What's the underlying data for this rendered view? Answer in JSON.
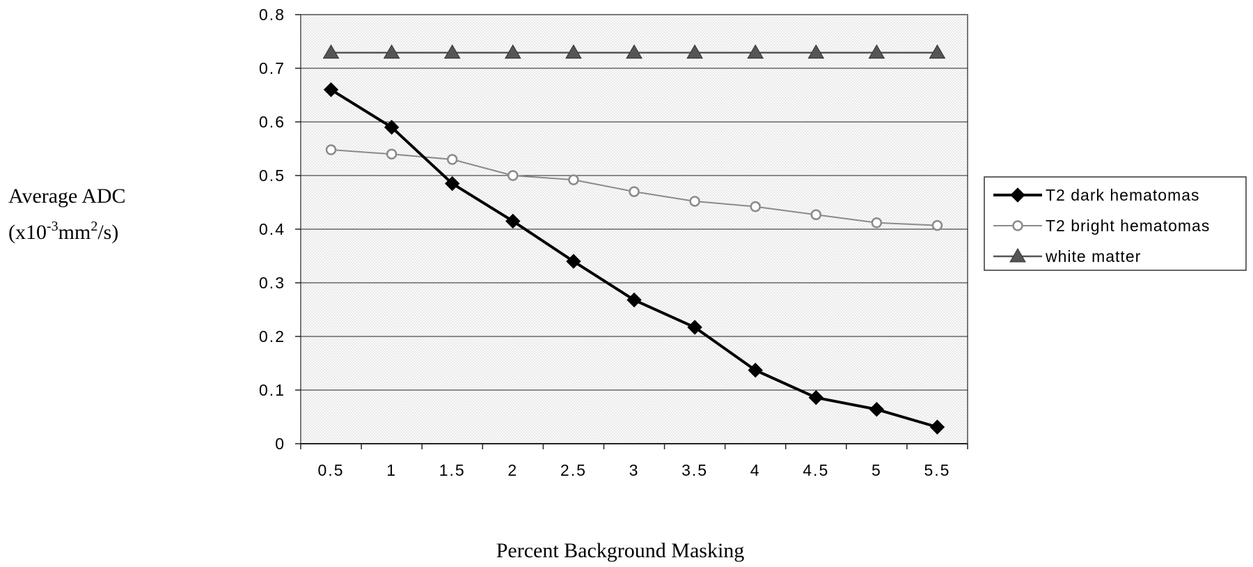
{
  "chart_data": {
    "type": "line",
    "xlabel": "Percent Background Masking",
    "ylabel_line1": "Average ADC",
    "ylabel_line2_parts": [
      "(x10",
      "-3",
      "mm",
      "2",
      "/s)"
    ],
    "categories": [
      "0.5",
      "1",
      "1.5",
      "2",
      "2.5",
      "3",
      "3.5",
      "4",
      "4.5",
      "5",
      "5.5"
    ],
    "ylim": [
      0,
      0.8
    ],
    "yticks": [
      "0",
      "0.1",
      "0.2",
      "0.3",
      "0.4",
      "0.5",
      "0.6",
      "0.7",
      "0.8"
    ],
    "grid": true,
    "legend_position": "right",
    "series": [
      {
        "name": "T2 dark hematomas",
        "marker": "diamond",
        "color": "#000000",
        "values": [
          0.66,
          0.59,
          0.485,
          0.415,
          0.34,
          0.268,
          0.217,
          0.137,
          0.086,
          0.064,
          0.031
        ]
      },
      {
        "name": "T2 bright hematomas",
        "marker": "circle",
        "color": "#8a8a8a",
        "values": [
          0.548,
          0.54,
          0.53,
          0.5,
          0.492,
          0.47,
          0.452,
          0.442,
          0.427,
          0.412,
          0.407
        ]
      },
      {
        "name": "white  matter",
        "marker": "triangle",
        "color": "#555555",
        "values": [
          0.729,
          0.729,
          0.729,
          0.729,
          0.729,
          0.729,
          0.729,
          0.729,
          0.729,
          0.729,
          0.729
        ]
      }
    ]
  }
}
